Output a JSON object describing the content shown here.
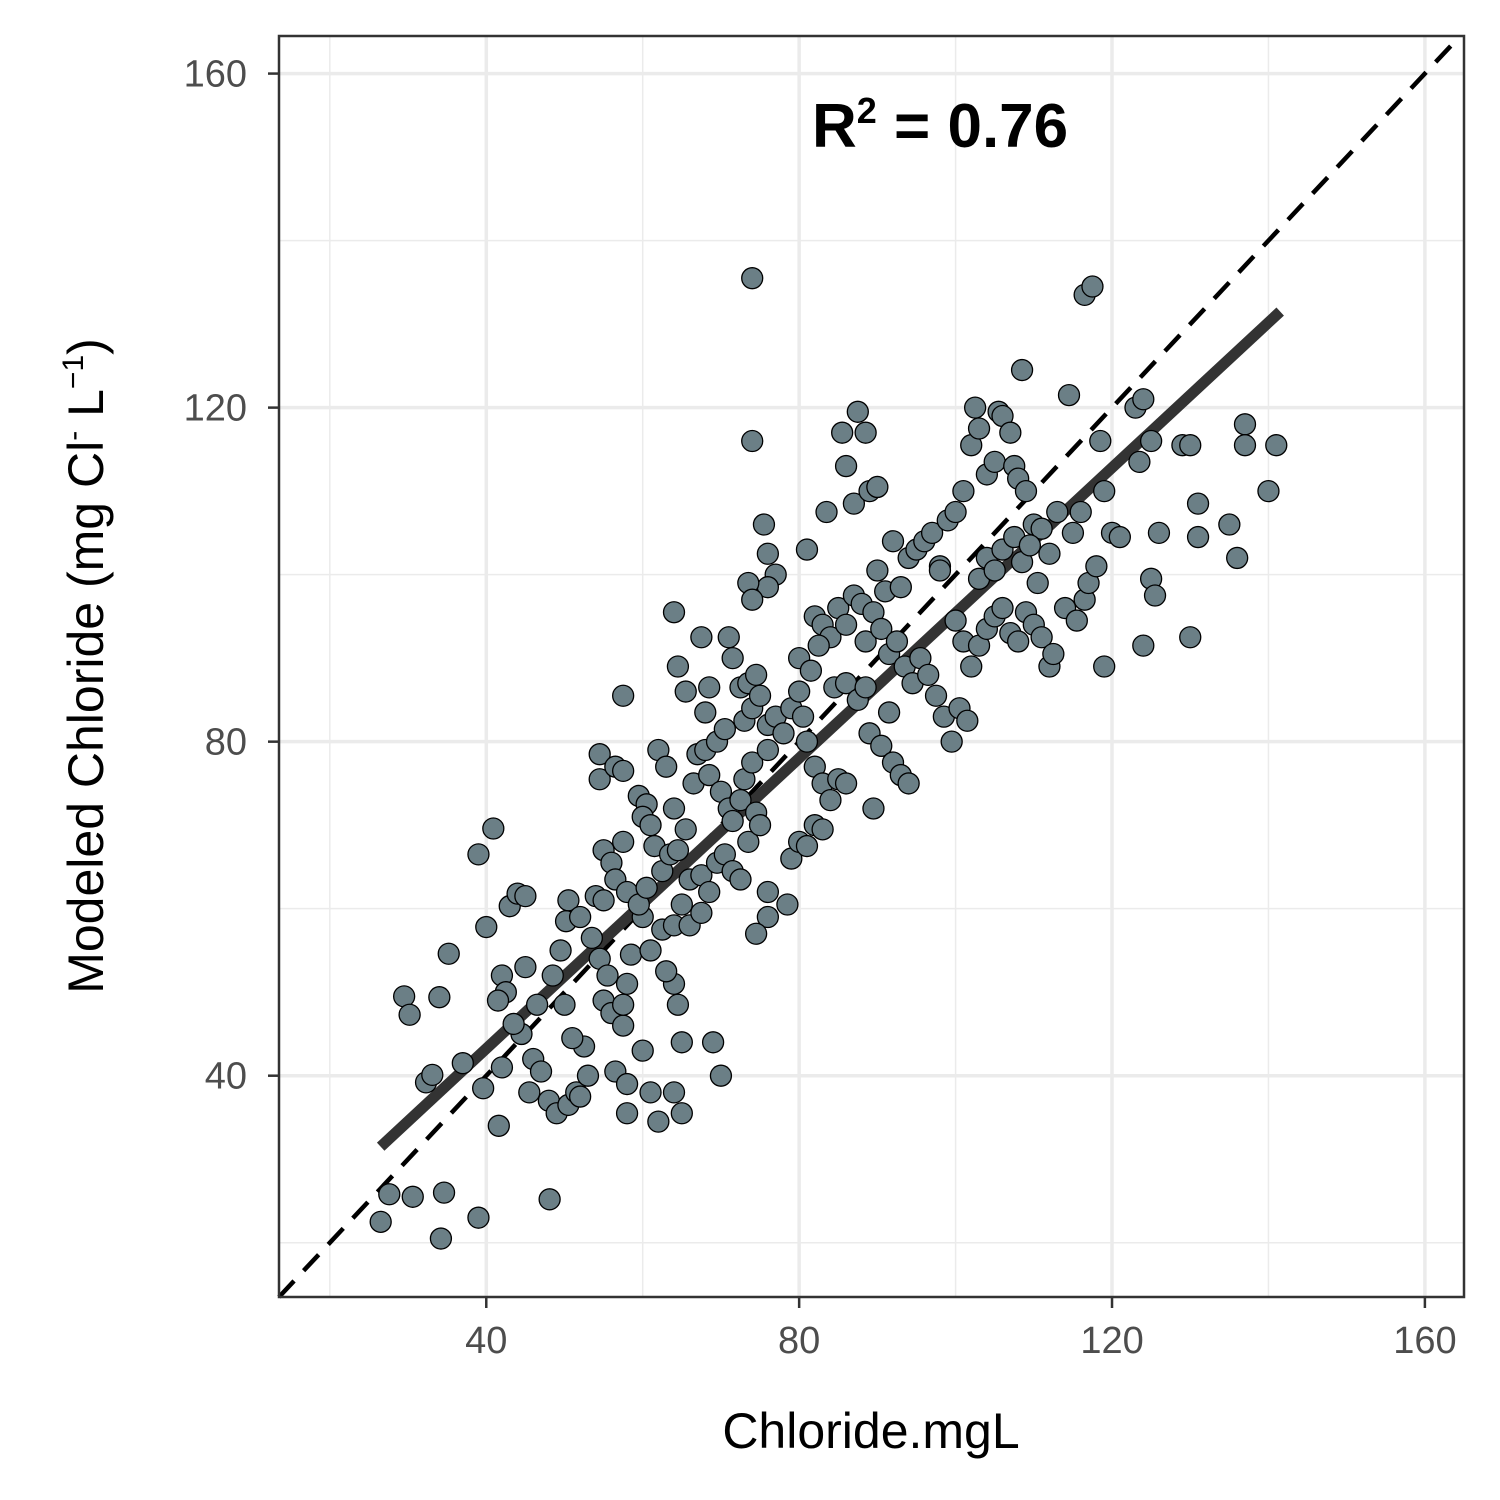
{
  "chart_data": {
    "type": "scatter",
    "title": "",
    "xlabel": "Chloride.mgL",
    "ylabel": {
      "main": "Modeled Chloride",
      "unit_prefix": "mg Cl",
      "unit_sup1": "-",
      "unit_mid": " L",
      "unit_sup2": "−1"
    },
    "annotation": {
      "r": "R",
      "sup": "2",
      "rest": " = 0.76"
    },
    "xlim": [
      13.5,
      165
    ],
    "ylim": [
      13.5,
      164.5
    ],
    "xticks": [
      40,
      80,
      120,
      160
    ],
    "yticks": [
      40,
      80,
      120,
      160
    ],
    "grid": true,
    "colors": {
      "point_fill": "#6b7f86",
      "point_stroke": "#000000",
      "fit_line": "#333333",
      "identity_line": "#000000",
      "grid": "#ebebeb",
      "panel_border": "#333333"
    },
    "identity_line": {
      "slope": 1,
      "intercept": 0,
      "style": "dashed"
    },
    "fit_line": {
      "x": [
        26.5,
        141.5
      ],
      "y": [
        31.5,
        131.5
      ]
    },
    "points": [
      [
        26.5,
        22.5
      ],
      [
        27.6,
        25.8
      ],
      [
        30.6,
        25.5
      ],
      [
        34.2,
        20.5
      ],
      [
        34.6,
        26.0
      ],
      [
        39.0,
        23.0
      ],
      [
        48.1,
        25.2
      ],
      [
        29.5,
        49.5
      ],
      [
        30.2,
        47.3
      ],
      [
        34.0,
        49.4
      ],
      [
        35.2,
        54.6
      ],
      [
        32.3,
        39.2
      ],
      [
        33.1,
        40.1
      ],
      [
        37.0,
        41.5
      ],
      [
        39.0,
        66.5
      ],
      [
        40.9,
        69.6
      ],
      [
        40.0,
        57.8
      ],
      [
        42.0,
        52.0
      ],
      [
        42.5,
        50.0
      ],
      [
        43.0,
        60.3
      ],
      [
        44.0,
        61.8
      ],
      [
        45.0,
        61.5
      ],
      [
        45.0,
        53.0
      ],
      [
        44.5,
        45.0
      ],
      [
        42.0,
        41.0
      ],
      [
        41.6,
        34.0
      ],
      [
        39.6,
        38.5
      ],
      [
        41.5,
        49.0
      ],
      [
        43.5,
        46.2
      ],
      [
        46.5,
        48.5
      ],
      [
        46.0,
        42.0
      ],
      [
        47.0,
        40.5
      ],
      [
        45.5,
        38.0
      ],
      [
        48.0,
        37.0
      ],
      [
        49.0,
        35.5
      ],
      [
        50.5,
        36.5
      ],
      [
        51.5,
        38.0
      ],
      [
        52.0,
        37.5
      ],
      [
        53.0,
        40.0
      ],
      [
        52.5,
        43.5
      ],
      [
        51.0,
        44.5
      ],
      [
        50.0,
        48.5
      ],
      [
        48.5,
        52.0
      ],
      [
        49.5,
        55.0
      ],
      [
        50.2,
        58.5
      ],
      [
        50.5,
        61.0
      ],
      [
        52.0,
        59.0
      ],
      [
        53.5,
        56.5
      ],
      [
        54.5,
        54.0
      ],
      [
        55.5,
        52.0
      ],
      [
        55.0,
        49.0
      ],
      [
        56.0,
        47.5
      ],
      [
        57.5,
        46.0
      ],
      [
        57.5,
        48.5
      ],
      [
        58.0,
        51.0
      ],
      [
        58.5,
        54.5
      ],
      [
        56.5,
        40.5
      ],
      [
        58.0,
        39.0
      ],
      [
        58.0,
        35.5
      ],
      [
        60.0,
        43.0
      ],
      [
        61.0,
        38.0
      ],
      [
        62.0,
        34.5
      ],
      [
        64.0,
        38.0
      ],
      [
        65.0,
        35.5
      ],
      [
        65.0,
        44.0
      ],
      [
        64.5,
        48.5
      ],
      [
        64.0,
        51.0
      ],
      [
        63.0,
        52.5
      ],
      [
        61.0,
        55.0
      ],
      [
        60.0,
        59.0
      ],
      [
        62.5,
        57.5
      ],
      [
        64.0,
        58.0
      ],
      [
        65.0,
        60.5
      ],
      [
        66.0,
        58.0
      ],
      [
        67.5,
        59.5
      ],
      [
        70.0,
        40.0
      ],
      [
        69.0,
        44.0
      ],
      [
        54.0,
        61.5
      ],
      [
        55.0,
        61.0
      ],
      [
        55.0,
        67.0
      ],
      [
        56.0,
        65.5
      ],
      [
        56.5,
        63.5
      ],
      [
        57.5,
        68.0
      ],
      [
        58.0,
        62.0
      ],
      [
        59.5,
        60.5
      ],
      [
        60.5,
        62.5
      ],
      [
        61.5,
        67.5
      ],
      [
        62.5,
        64.5
      ],
      [
        63.5,
        66.5
      ],
      [
        64.5,
        67.0
      ],
      [
        66.0,
        63.5
      ],
      [
        67.5,
        64.0
      ],
      [
        68.5,
        62.0
      ],
      [
        69.5,
        65.5
      ],
      [
        70.5,
        66.5
      ],
      [
        71.5,
        64.5
      ],
      [
        72.5,
        63.5
      ],
      [
        73.5,
        68.0
      ],
      [
        54.5,
        78.5
      ],
      [
        54.5,
        75.5
      ],
      [
        56.5,
        77.0
      ],
      [
        57.5,
        76.5
      ],
      [
        57.5,
        85.5
      ],
      [
        59.5,
        73.5
      ],
      [
        60.5,
        72.5
      ],
      [
        60.0,
        71.0
      ],
      [
        61.0,
        70.0
      ],
      [
        62.0,
        79.0
      ],
      [
        63.0,
        77.0
      ],
      [
        64.0,
        72.0
      ],
      [
        65.5,
        69.5
      ],
      [
        66.5,
        75.0
      ],
      [
        67.0,
        78.5
      ],
      [
        68.0,
        79.0
      ],
      [
        68.5,
        76.0
      ],
      [
        69.5,
        80.0
      ],
      [
        70.0,
        74.0
      ],
      [
        71.0,
        72.0
      ],
      [
        71.5,
        70.5
      ],
      [
        72.5,
        73.0
      ],
      [
        73.0,
        75.5
      ],
      [
        74.0,
        77.5
      ],
      [
        74.5,
        71.5
      ],
      [
        75.0,
        70.0
      ],
      [
        76.0,
        62.0
      ],
      [
        76.0,
        59.0
      ],
      [
        74.5,
        57.0
      ],
      [
        78.5,
        60.5
      ],
      [
        79.0,
        66.0
      ],
      [
        80.0,
        68.0
      ],
      [
        81.0,
        67.5
      ],
      [
        82.0,
        70.0
      ],
      [
        83.0,
        69.5
      ],
      [
        64.0,
        95.5
      ],
      [
        64.5,
        89.0
      ],
      [
        65.5,
        86.0
      ],
      [
        67.5,
        92.5
      ],
      [
        68.0,
        83.5
      ],
      [
        68.5,
        86.5
      ],
      [
        70.5,
        81.5
      ],
      [
        71.0,
        92.5
      ],
      [
        71.5,
        90.0
      ],
      [
        72.5,
        86.5
      ],
      [
        73.0,
        82.5
      ],
      [
        73.5,
        87.0
      ],
      [
        74.0,
        84.0
      ],
      [
        74.5,
        88.0
      ],
      [
        75.0,
        85.5
      ],
      [
        76.0,
        82.0
      ],
      [
        76.0,
        79.0
      ],
      [
        77.0,
        83.0
      ],
      [
        78.0,
        81.0
      ],
      [
        79.0,
        84.0
      ],
      [
        80.0,
        86.0
      ],
      [
        80.5,
        83.0
      ],
      [
        81.0,
        80.0
      ],
      [
        82.0,
        77.0
      ],
      [
        83.0,
        75.0
      ],
      [
        84.0,
        73.0
      ],
      [
        85.0,
        75.5
      ],
      [
        86.0,
        75.0
      ],
      [
        74.0,
        135.5
      ],
      [
        74.0,
        116.0
      ],
      [
        75.5,
        106.0
      ],
      [
        76.0,
        102.5
      ],
      [
        77.0,
        100.0
      ],
      [
        76.0,
        98.5
      ],
      [
        73.5,
        99.0
      ],
      [
        74.0,
        97.0
      ],
      [
        81.0,
        103.0
      ],
      [
        83.5,
        107.5
      ],
      [
        85.5,
        117.0
      ],
      [
        86.0,
        113.0
      ],
      [
        87.5,
        119.5
      ],
      [
        88.5,
        117.0
      ],
      [
        87.0,
        108.5
      ],
      [
        89.0,
        110.0
      ],
      [
        90.0,
        110.5
      ],
      [
        90.0,
        100.5
      ],
      [
        91.0,
        98.0
      ],
      [
        92.0,
        104.0
      ],
      [
        93.0,
        98.5
      ],
      [
        94.0,
        102.0
      ],
      [
        95.0,
        103.0
      ],
      [
        96.0,
        104.0
      ],
      [
        97.0,
        105.0
      ],
      [
        98.0,
        101.0
      ],
      [
        98.0,
        100.5
      ],
      [
        99.0,
        106.5
      ],
      [
        82.0,
        95.0
      ],
      [
        83.0,
        94.0
      ],
      [
        84.0,
        92.5
      ],
      [
        85.0,
        96.0
      ],
      [
        86.0,
        94.0
      ],
      [
        87.0,
        97.5
      ],
      [
        88.0,
        96.5
      ],
      [
        88.5,
        92.0
      ],
      [
        89.5,
        95.5
      ],
      [
        90.5,
        93.5
      ],
      [
        91.5,
        90.5
      ],
      [
        92.5,
        92.0
      ],
      [
        93.5,
        89.0
      ],
      [
        94.5,
        87.0
      ],
      [
        95.5,
        90.0
      ],
      [
        96.5,
        88.0
      ],
      [
        97.5,
        85.5
      ],
      [
        98.5,
        83.0
      ],
      [
        99.5,
        80.0
      ],
      [
        100.5,
        84.0
      ],
      [
        101.5,
        82.5
      ],
      [
        80.0,
        90.0
      ],
      [
        81.5,
        88.5
      ],
      [
        82.5,
        91.5
      ],
      [
        84.5,
        86.5
      ],
      [
        86.0,
        87.0
      ],
      [
        87.5,
        85.0
      ],
      [
        88.5,
        86.5
      ],
      [
        89.0,
        81.0
      ],
      [
        90.5,
        79.5
      ],
      [
        91.5,
        83.5
      ],
      [
        92.0,
        77.5
      ],
      [
        93.0,
        76.0
      ],
      [
        94.0,
        75.0
      ],
      [
        89.5,
        72.0
      ],
      [
        100.0,
        107.5
      ],
      [
        101.0,
        110.0
      ],
      [
        102.0,
        115.5
      ],
      [
        102.5,
        120.0
      ],
      [
        103.0,
        117.5
      ],
      [
        104.0,
        112.0
      ],
      [
        105.0,
        113.5
      ],
      [
        105.5,
        119.5
      ],
      [
        106.0,
        119.0
      ],
      [
        107.0,
        117.0
      ],
      [
        107.5,
        113.0
      ],
      [
        108.0,
        111.5
      ],
      [
        108.5,
        124.5
      ],
      [
        109.0,
        110.0
      ],
      [
        110.0,
        106.0
      ],
      [
        111.0,
        105.5
      ],
      [
        112.0,
        102.5
      ],
      [
        113.0,
        107.5
      ],
      [
        100.0,
        94.5
      ],
      [
        101.0,
        92.0
      ],
      [
        102.0,
        89.0
      ],
      [
        103.0,
        91.5
      ],
      [
        104.0,
        93.5
      ],
      [
        105.0,
        95.0
      ],
      [
        106.0,
        96.0
      ],
      [
        107.0,
        93.0
      ],
      [
        108.0,
        92.0
      ],
      [
        109.0,
        95.5
      ],
      [
        110.0,
        94.0
      ],
      [
        111.0,
        92.5
      ],
      [
        112.0,
        89.0
      ],
      [
        112.5,
        90.5
      ],
      [
        103.0,
        99.5
      ],
      [
        104.0,
        102.0
      ],
      [
        105.0,
        100.5
      ],
      [
        106.0,
        103.0
      ],
      [
        107.5,
        104.5
      ],
      [
        108.5,
        101.5
      ],
      [
        109.5,
        103.5
      ],
      [
        110.5,
        99.0
      ],
      [
        114.5,
        121.5
      ],
      [
        116.5,
        133.5
      ],
      [
        117.5,
        134.5
      ],
      [
        118.5,
        116.0
      ],
      [
        119.0,
        110.0
      ],
      [
        120.0,
        105.0
      ],
      [
        121.0,
        104.5
      ],
      [
        119.0,
        89.0
      ],
      [
        115.0,
        105.0
      ],
      [
        116.0,
        107.5
      ],
      [
        114.0,
        96.0
      ],
      [
        115.5,
        94.5
      ],
      [
        116.5,
        97.0
      ],
      [
        117.0,
        99.0
      ],
      [
        118.0,
        101.0
      ],
      [
        123.0,
        120.0
      ],
      [
        124.0,
        121.0
      ],
      [
        123.5,
        113.5
      ],
      [
        125.0,
        116.0
      ],
      [
        126.0,
        105.0
      ],
      [
        125.0,
        99.5
      ],
      [
        125.5,
        97.5
      ],
      [
        124.0,
        91.5
      ],
      [
        129.0,
        115.5
      ],
      [
        130.0,
        115.5
      ],
      [
        130.0,
        92.5
      ],
      [
        131.0,
        108.5
      ],
      [
        131.0,
        104.5
      ],
      [
        135.0,
        106.0
      ],
      [
        136.0,
        102.0
      ],
      [
        137.0,
        118.0
      ],
      [
        137.0,
        115.5
      ],
      [
        140.0,
        110.0
      ],
      [
        141.0,
        115.5
      ]
    ]
  }
}
